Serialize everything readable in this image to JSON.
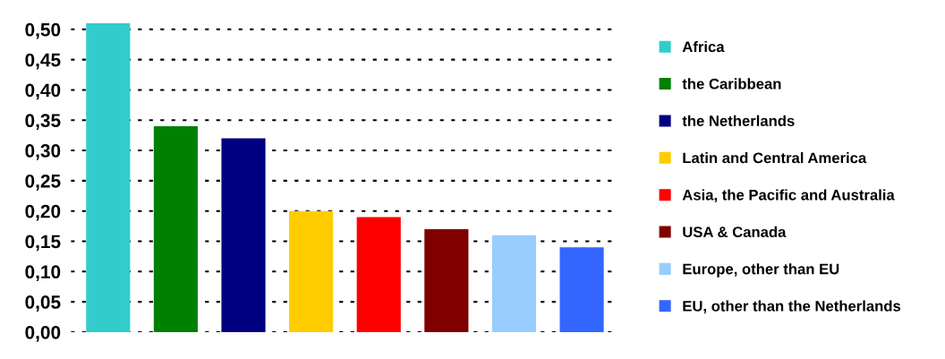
{
  "chart_data": {
    "type": "bar",
    "categories": [
      null,
      null,
      null,
      null,
      null,
      null,
      null,
      null
    ],
    "series": [
      {
        "name": "Africa",
        "color": "#33cccc",
        "values": [
          0.51,
          null,
          null,
          null,
          null,
          null,
          null,
          null
        ]
      },
      {
        "name": "the Caribbean",
        "color": "#008000",
        "values": [
          null,
          0.34,
          null,
          null,
          null,
          null,
          null,
          null
        ]
      },
      {
        "name": "the Netherlands",
        "color": "#000080",
        "values": [
          null,
          null,
          0.32,
          null,
          null,
          null,
          null,
          null
        ]
      },
      {
        "name": "Latin and Central America",
        "color": "#ffcc00",
        "values": [
          null,
          null,
          null,
          0.2,
          null,
          null,
          null,
          null
        ]
      },
      {
        "name": "Asia, the Pacific and Australia",
        "color": "#ff0000",
        "values": [
          null,
          null,
          null,
          null,
          0.19,
          null,
          null,
          null
        ]
      },
      {
        "name": "USA & Canada",
        "color": "#800000",
        "values": [
          null,
          null,
          null,
          null,
          null,
          0.17,
          null,
          null
        ]
      },
      {
        "name": "Europe, other than EU",
        "color": "#99ccff",
        "values": [
          null,
          null,
          null,
          null,
          null,
          null,
          0.16,
          null
        ]
      },
      {
        "name": "EU, other than the Netherlands",
        "color": "#3366ff",
        "values": [
          null,
          null,
          null,
          null,
          null,
          null,
          null,
          0.14
        ]
      }
    ],
    "ylim": [
      0,
      0.51
    ],
    "yticks": [
      {
        "value": 0,
        "label": "0,00"
      },
      {
        "value": 0.05,
        "label": "0,05"
      },
      {
        "value": 0.1,
        "label": "0,10"
      },
      {
        "value": 0.15,
        "label": "0,15"
      },
      {
        "value": 0.2,
        "label": "0,20"
      },
      {
        "value": 0.25,
        "label": "0,25"
      },
      {
        "value": 0.3,
        "label": "0,30"
      },
      {
        "value": 0.35,
        "label": "0,35"
      },
      {
        "value": 0.4,
        "label": "0,40"
      },
      {
        "value": 0.45,
        "label": "0,45"
      },
      {
        "value": 0.5,
        "label": "0,50"
      }
    ],
    "grid": "y",
    "legend": "right"
  }
}
